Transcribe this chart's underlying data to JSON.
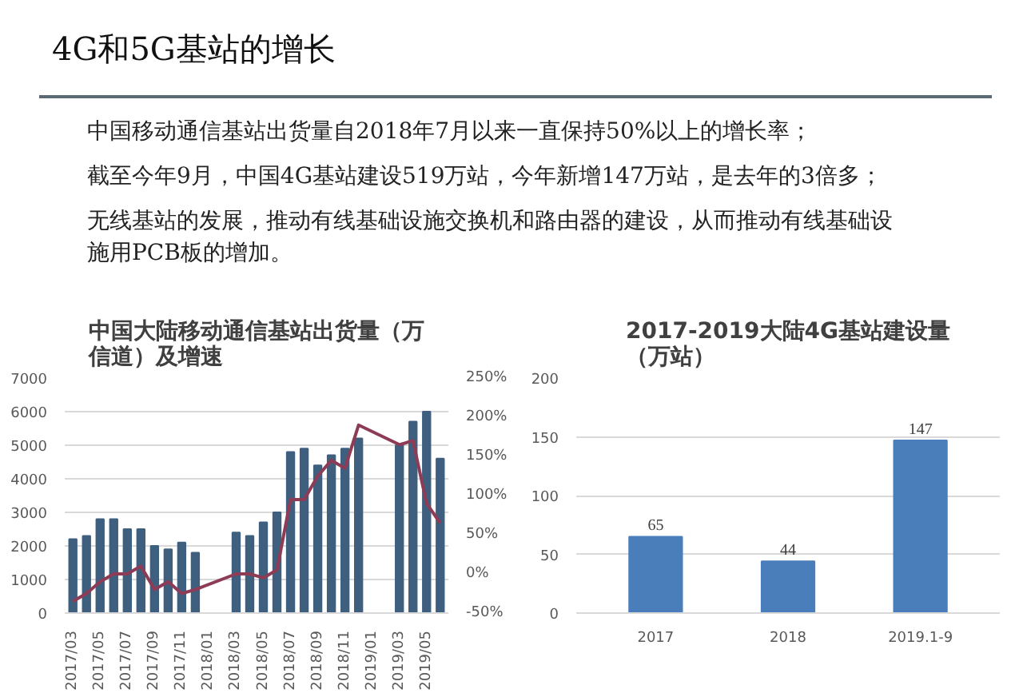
{
  "chart_data": [
    {
      "type": "other",
      "title": "4G和5G基站的增长",
      "annotations": [
        "中国移动通信基站出货量自2018年7月以来一直保持50%以上的增长率；",
        "截至今年9月，中国4G基站建设519万站，今年新增147万站，是去年的3倍多；",
        "无线基站的发展，推动有线基础设施交换机和路由器的建设，从而推动有线基础设施用PCB板的增加。"
      ]
    },
    {
      "type": "bar",
      "title": "中国大陆移动通信基站出货量（万信道）及增速",
      "categories": [
        "2017/03",
        null,
        "2017/05",
        null,
        "2017/07",
        null,
        "2017/09",
        null,
        "2017/11",
        null,
        "2018/01",
        null,
        "2018/03",
        null,
        "2018/05",
        null,
        "2018/07",
        null,
        "2018/09",
        null,
        "2018/11",
        null,
        "2019/01",
        null,
        "2019/03",
        null,
        "2019/05",
        null
      ],
      "series": [
        {
          "color": "#3f5f7f",
          "values": [
            2200,
            2300,
            2800,
            2800,
            2500,
            2500,
            2000,
            1900,
            2100,
            1800,
            null,
            null,
            2400,
            2300,
            2700,
            3000,
            4800,
            4900,
            4400,
            4700,
            4900,
            5200,
            null,
            null,
            5000,
            5700,
            6000,
            4600
          ]
        },
        {
          "type": "line",
          "axis": "y2",
          "color": "#8e3b56",
          "values": [
            -35,
            -25,
            -10,
            0,
            0,
            10,
            -20,
            -10,
            -25,
            -20,
            null,
            null,
            0,
            0,
            -5,
            5,
            95,
            95,
            125,
            145,
            135,
            190,
            null,
            null,
            165,
            170,
            90,
            65
          ]
        }
      ],
      "ylim": [
        0,
        7000
      ],
      "yticks": [
        0,
        1000,
        2000,
        3000,
        4000,
        5000,
        6000,
        7000
      ],
      "y2lim": [
        -50,
        250
      ],
      "y2ticks": [
        {
          "value": -50,
          "label": "-50%"
        },
        {
          "value": 0,
          "label": "0%"
        },
        {
          "value": 50,
          "label": "50%"
        },
        {
          "value": 100,
          "label": "100%"
        },
        {
          "value": 150,
          "label": "150%"
        },
        {
          "value": 200,
          "label": "200%"
        },
        {
          "value": 250,
          "label": "250%"
        }
      ],
      "grid": "y"
    },
    {
      "type": "bar",
      "title": "2017-2019大陆4G基站建设量（万站）",
      "categories": [
        "2017",
        "2018",
        "2019.1-9"
      ],
      "series": [
        {
          "color": "#4a7ebb",
          "values": [
            65,
            44,
            147
          ]
        }
      ],
      "ylim": [
        0,
        200
      ],
      "yticks": [
        0,
        50,
        100,
        150,
        200
      ],
      "grid": "y",
      "data_labels": true
    }
  ]
}
